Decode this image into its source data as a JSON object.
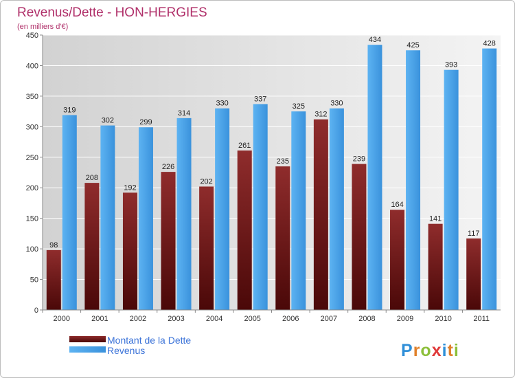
{
  "chart_data": {
    "type": "bar",
    "title": "Revenus/Dette - HON-HERGIES",
    "subtitle": "(en milliers d'€)",
    "categories": [
      "2000",
      "2001",
      "2002",
      "2003",
      "2004",
      "2005",
      "2006",
      "2007",
      "2008",
      "2009",
      "2010",
      "2011"
    ],
    "series": [
      {
        "name": "Montant de la Dette",
        "values": [
          98,
          208,
          192,
          226,
          202,
          261,
          235,
          312,
          239,
          164,
          141,
          117
        ],
        "color": "#7a1c1c"
      },
      {
        "name": "Revenus",
        "values": [
          319,
          302,
          299,
          314,
          330,
          337,
          325,
          330,
          434,
          425,
          393,
          428
        ],
        "color": "#4aa3e8"
      }
    ],
    "ylim": [
      0,
      450
    ],
    "yticks": [
      0,
      50,
      100,
      150,
      200,
      250,
      300,
      350,
      400,
      450
    ],
    "grid": true,
    "legend_position": "bottom-left"
  },
  "brand": {
    "logo_text": "Proxiti"
  },
  "colors": {
    "title": "#b0306a",
    "debt_top": "#8b2a2a",
    "debt_bottom": "#4a0a0a",
    "revenue_top": "#5ab0f0",
    "revenue_bottom": "#2f86d0"
  }
}
